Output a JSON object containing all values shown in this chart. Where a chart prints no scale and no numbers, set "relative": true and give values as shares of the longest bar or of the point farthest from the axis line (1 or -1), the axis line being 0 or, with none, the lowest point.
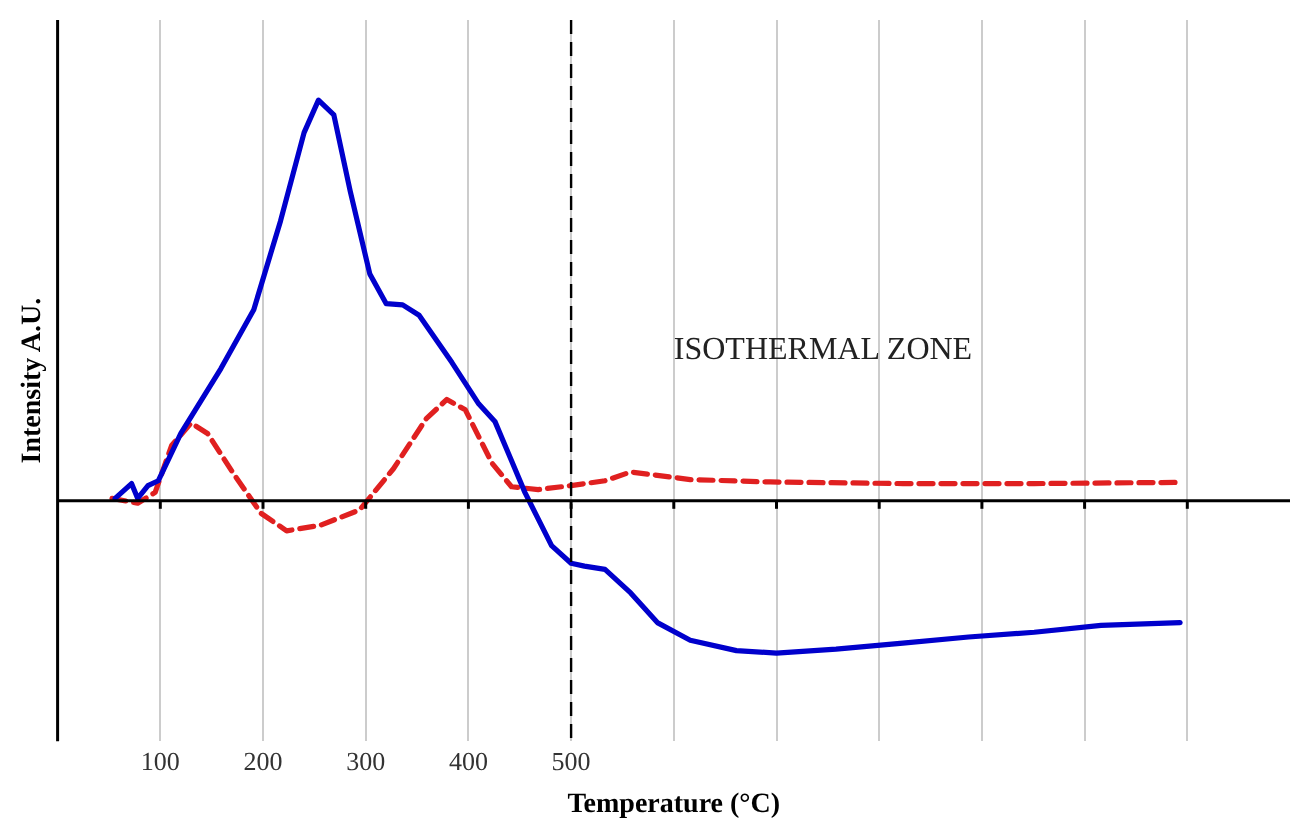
{
  "chart_data": {
    "type": "line",
    "xlabel": "Temperature (°C)",
    "ylabel": "Intensity A.U.",
    "relative": true,
    "xlim": [
      0,
      1200
    ],
    "xticks": [
      100,
      200,
      300,
      400,
      500,
      {
        "value": 600,
        "label": null
      },
      {
        "value": 700,
        "label": null
      },
      {
        "value": 800,
        "label": null
      },
      {
        "value": 900,
        "label": null
      },
      {
        "value": 1000,
        "label": null
      },
      {
        "value": 1100,
        "label": null
      }
    ],
    "grid": "x",
    "legend": false,
    "marker": "none",
    "ref_lines": [
      {
        "axis": "x",
        "value": 500,
        "color": "#000000",
        "line_style": "dashed"
      }
    ],
    "annotations": [
      "ISOTHERMAL ZONE"
    ],
    "series": [
      {
        "color": "#0000cc",
        "line_style": "solid",
        "x": [
          56,
          72,
          78,
          88,
          98,
          120,
          159,
          191,
          217,
          240,
          254,
          269,
          285,
          304,
          320,
          336,
          352,
          384,
          410,
          426,
          455,
          481,
          500,
          513,
          533,
          558,
          584,
          616,
          661,
          700,
          758,
          823,
          887,
          951,
          1016,
          1093
        ],
        "values": [
          0.006,
          0.043,
          0.006,
          0.038,
          0.05,
          0.168,
          0.33,
          0.477,
          0.698,
          0.919,
          1,
          0.963,
          0.772,
          0.566,
          0.492,
          0.489,
          0.463,
          0.345,
          0.242,
          0.197,
          0.021,
          -0.112,
          -0.156,
          -0.163,
          -0.171,
          -0.23,
          -0.304,
          -0.348,
          -0.374,
          -0.38,
          -0.37,
          -0.355,
          -0.34,
          -0.328,
          -0.311,
          -0.304
        ]
      },
      {
        "color": "#e02020",
        "line_style": "dashed",
        "x": [
          53,
          78,
          95,
          111,
          130,
          146,
          172,
          198,
          223,
          256,
          294,
          327,
          359,
          379,
          397,
          423,
          442,
          468,
          500,
          533,
          558,
          616,
          694,
          823,
          951,
          1093
        ],
        "values": [
          0.006,
          -0.006,
          0.021,
          0.138,
          0.194,
          0.168,
          0.065,
          -0.031,
          -0.075,
          -0.061,
          -0.023,
          0.08,
          0.205,
          0.253,
          0.227,
          0.094,
          0.035,
          0.028,
          0.038,
          0.05,
          0.072,
          0.053,
          0.047,
          0.043,
          0.043,
          0.046
        ]
      }
    ]
  }
}
